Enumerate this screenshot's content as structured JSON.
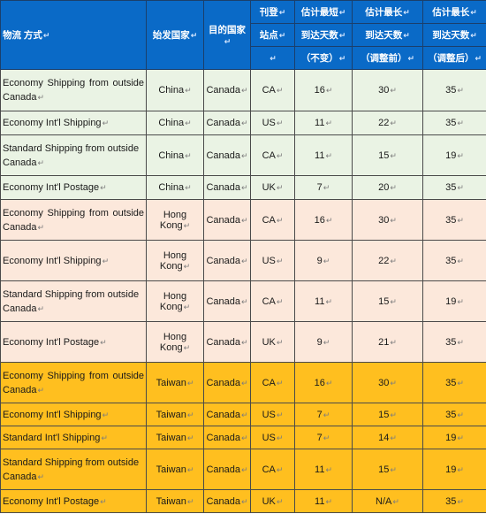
{
  "header": {
    "method": "物流 方式",
    "origin": "始发国家",
    "destination": "目的国家",
    "site_line1": "刊登",
    "site_line2": "站点",
    "min_line1": "估计最短",
    "min_line2": "到达天数",
    "min_line3": "（不变）",
    "maxbefore_line1": "估计最长",
    "maxbefore_line2": "到达天数",
    "maxbefore_line3": "（调整前）",
    "maxafter_line1": "估计最长",
    "maxafter_line2": "到达天数",
    "maxafter_line3": "（调整后）"
  },
  "rows": [
    {
      "method": "Economy Shipping from outside Canada",
      "origin": "China",
      "destination": "Canada",
      "site": "CA",
      "min": "16",
      "max_before": "30",
      "max_after": "35"
    },
    {
      "method": "Economy Int'l Shipping",
      "origin": "China",
      "destination": "Canada",
      "site": "US",
      "min": "11",
      "max_before": "22",
      "max_after": "35"
    },
    {
      "method": "Standard Shipping from outside Canada",
      "origin": "China",
      "destination": "Canada",
      "site": "CA",
      "min": "11",
      "max_before": "15",
      "max_after": "19"
    },
    {
      "method": "Economy Int'l Postage",
      "origin": "China",
      "destination": "Canada",
      "site": "UK",
      "min": "7",
      "max_before": "20",
      "max_after": "35"
    },
    {
      "method": "Economy Shipping from outside Canada",
      "origin": "Hong Kong",
      "destination": "Canada",
      "site": "CA",
      "min": "16",
      "max_before": "30",
      "max_after": "35"
    },
    {
      "method": "Economy Int'l Shipping",
      "origin": "Hong Kong",
      "destination": "Canada",
      "site": "US",
      "min": "9",
      "max_before": "22",
      "max_after": "35"
    },
    {
      "method": "Standard Shipping from outside Canada",
      "origin": "Hong Kong",
      "destination": "Canada",
      "site": "CA",
      "min": "11",
      "max_before": "15",
      "max_after": "19"
    },
    {
      "method": "Economy Int'l Postage",
      "origin": "Hong Kong",
      "destination": "Canada",
      "site": "UK",
      "min": "9",
      "max_before": "21",
      "max_after": "35"
    },
    {
      "method": "Economy Shipping from outside Canada",
      "origin": "Taiwan",
      "destination": "Canada",
      "site": "CA",
      "min": "16",
      "max_before": "30",
      "max_after": "35"
    },
    {
      "method": "Economy Int'l Shipping",
      "origin": "Taiwan",
      "destination": "Canada",
      "site": "US",
      "min": "7",
      "max_before": "15",
      "max_after": "35"
    },
    {
      "method": "Standard Int'l Shipping",
      "origin": "Taiwan",
      "destination": "Canada",
      "site": "US",
      "min": "7",
      "max_before": "14",
      "max_after": "19"
    },
    {
      "method": "Standard Shipping from outside Canada",
      "origin": "Taiwan",
      "destination": "Canada",
      "site": "CA",
      "min": "11",
      "max_before": "15",
      "max_after": "19"
    },
    {
      "method": "Economy Int'l Postage",
      "origin": "Taiwan",
      "destination": "Canada",
      "site": "UK",
      "min": "11",
      "max_before": "N/A",
      "max_after": "35"
    }
  ],
  "colors": {
    "header_blue": "#0a6ac7",
    "china_group": "#eaf3e4",
    "hongkong_group": "#fce8db",
    "taiwan_group": "#ffbf1f"
  }
}
